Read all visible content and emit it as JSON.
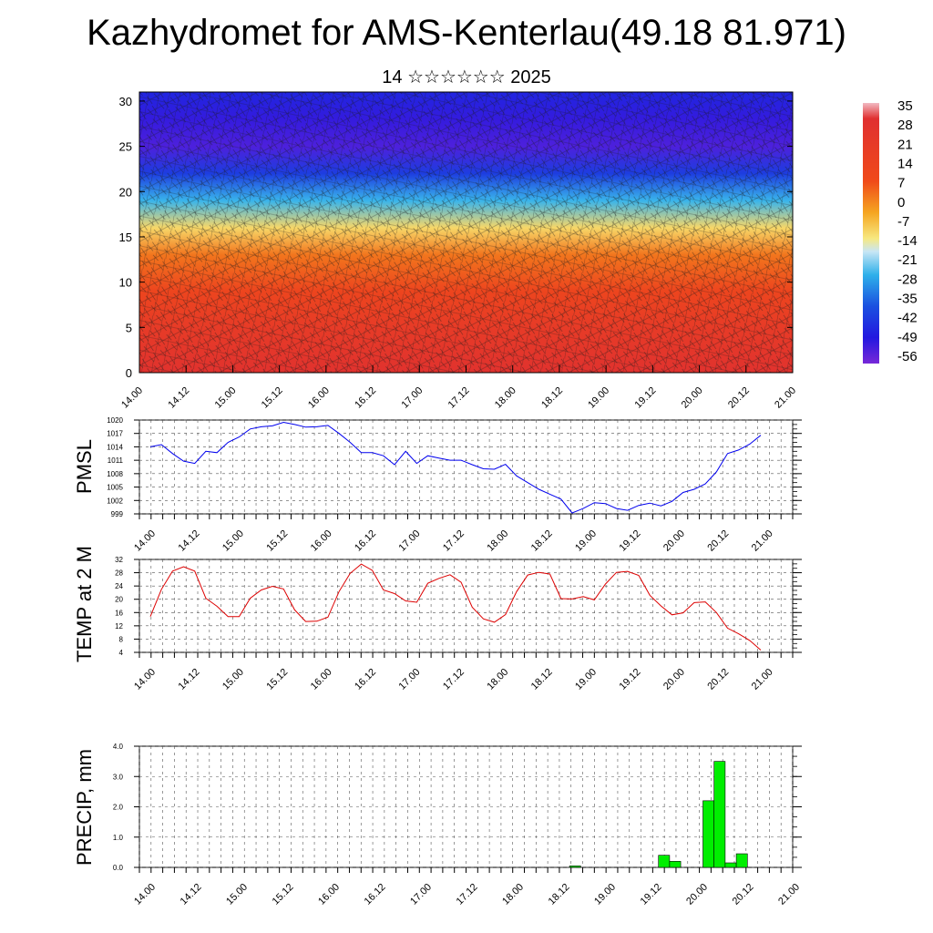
{
  "title": "Kazhydromet for AMS-Kenterlau(49.18 81.971)",
  "subtitle": "14 ☆☆☆☆☆☆ 2025",
  "chart_data": [
    {
      "type": "heatmap",
      "name": "vertical-profile",
      "x_ticks": [
        "14.00",
        "14.12",
        "15.00",
        "15.12",
        "16.00",
        "16.12",
        "17.00",
        "17.12",
        "18.00",
        "18.12",
        "19.00",
        "19.12",
        "20.00",
        "20.12",
        "21.00"
      ],
      "y_ticks": [
        0,
        5,
        10,
        15,
        20,
        25,
        30
      ],
      "ylim": [
        0,
        31
      ],
      "colorbar": {
        "labels": [
          "35",
          "28",
          "21",
          "14",
          "7",
          "0",
          "-7",
          "-14",
          "-21",
          "-28",
          "-35",
          "-42",
          "-49",
          "-56"
        ],
        "range": [
          -63,
          38
        ]
      },
      "temperature_profile": [
        {
          "height": 0,
          "value": 30
        },
        {
          "height": 5,
          "value": 22
        },
        {
          "height": 9,
          "value": 12
        },
        {
          "height": 13,
          "value": 2
        },
        {
          "height": 16,
          "value": -12
        },
        {
          "height": 19,
          "value": -28
        },
        {
          "height": 22,
          "value": -45
        },
        {
          "height": 25,
          "value": -58
        },
        {
          "height": 28,
          "value": -55
        },
        {
          "height": 31,
          "value": -50
        }
      ]
    },
    {
      "type": "line",
      "name": "pmsl",
      "ylabel": "PMSL",
      "y_ticks": [
        999,
        1002,
        1005,
        1008,
        1011,
        1014,
        1017,
        1020
      ],
      "ylim": [
        999,
        1020
      ],
      "color": "#0000ee",
      "x_ticks": [
        "14.00",
        "14.12",
        "15.00",
        "15.12",
        "16.00",
        "16.12",
        "17.00",
        "17.12",
        "18.00",
        "18.12",
        "19.00",
        "19.12",
        "20.00",
        "20.12",
        "21.00"
      ],
      "values": [
        1014,
        1014.5,
        1012.5,
        1010.8,
        1010.3,
        1013,
        1012.7,
        1015,
        1016.2,
        1018,
        1018.5,
        1018.7,
        1019.5,
        1019,
        1018.4,
        1018.5,
        1018.8,
        1017,
        1015,
        1012.7,
        1012.7,
        1012,
        1010,
        1013,
        1010.3,
        1012,
        1011.5,
        1011,
        1011,
        1010,
        1009.1,
        1009,
        1010.1,
        1007.5,
        1006,
        1004.5,
        1003.4,
        1002.3,
        999.2,
        1000.2,
        1001.5,
        1001.3,
        1000.2,
        999.8,
        1000.9,
        1001.4,
        1000.8,
        1001.8,
        1003.8,
        1004.5,
        1005.7,
        1008.4,
        1012.5,
        1013.3,
        1014.6,
        1016.6
      ]
    },
    {
      "type": "line",
      "name": "temp",
      "ylabel": "TEMP at 2 M",
      "y_ticks": [
        4,
        8,
        12,
        16,
        20,
        24,
        28,
        32
      ],
      "ylim": [
        4,
        32
      ],
      "color": "#dd0000",
      "x_ticks": [
        "14.00",
        "14.12",
        "15.00",
        "15.12",
        "16.00",
        "16.12",
        "17.00",
        "17.12",
        "18.00",
        "18.12",
        "19.00",
        "19.12",
        "20.00",
        "20.12",
        "21.00"
      ],
      "values": [
        14.8,
        23,
        28.5,
        29.8,
        28.5,
        20.3,
        17.9,
        14.8,
        14.8,
        20.3,
        22.8,
        23.9,
        23.1,
        16.8,
        13.3,
        13.4,
        14.6,
        22.3,
        27.8,
        30.6,
        28.7,
        22.8,
        21.7,
        19.5,
        19.1,
        24.8,
        26.3,
        27.4,
        25.1,
        17.6,
        14.1,
        13.1,
        15.4,
        22.3,
        27.3,
        28.1,
        27.6,
        20.2,
        20.1,
        20.8,
        19.8,
        24.6,
        28.1,
        28.4,
        27.2,
        21.2,
        18,
        15.3,
        15.9,
        19,
        19.2,
        16,
        11.3,
        9.6,
        7.6,
        4.7
      ]
    },
    {
      "type": "bar",
      "name": "precip",
      "ylabel": "PRECIP, mm",
      "y_ticks": [
        "0.0",
        "1.0",
        "2.0",
        "3.0",
        "4.0"
      ],
      "ylim": [
        0,
        4
      ],
      "color": "#00ee00",
      "x_ticks": [
        "14.00",
        "14.12",
        "15.00",
        "15.12",
        "16.00",
        "16.12",
        "17.00",
        "17.12",
        "18.00",
        "18.12",
        "19.00",
        "19.12",
        "20.00",
        "20.12",
        "21.00"
      ],
      "bars": [
        {
          "index": 38,
          "value": 0.05
        },
        {
          "index": 46,
          "value": 0.4
        },
        {
          "index": 47,
          "value": 0.2
        },
        {
          "index": 50,
          "value": 2.2
        },
        {
          "index": 51,
          "value": 3.5
        },
        {
          "index": 52,
          "value": 0.15
        },
        {
          "index": 53,
          "value": 0.45
        }
      ]
    }
  ]
}
